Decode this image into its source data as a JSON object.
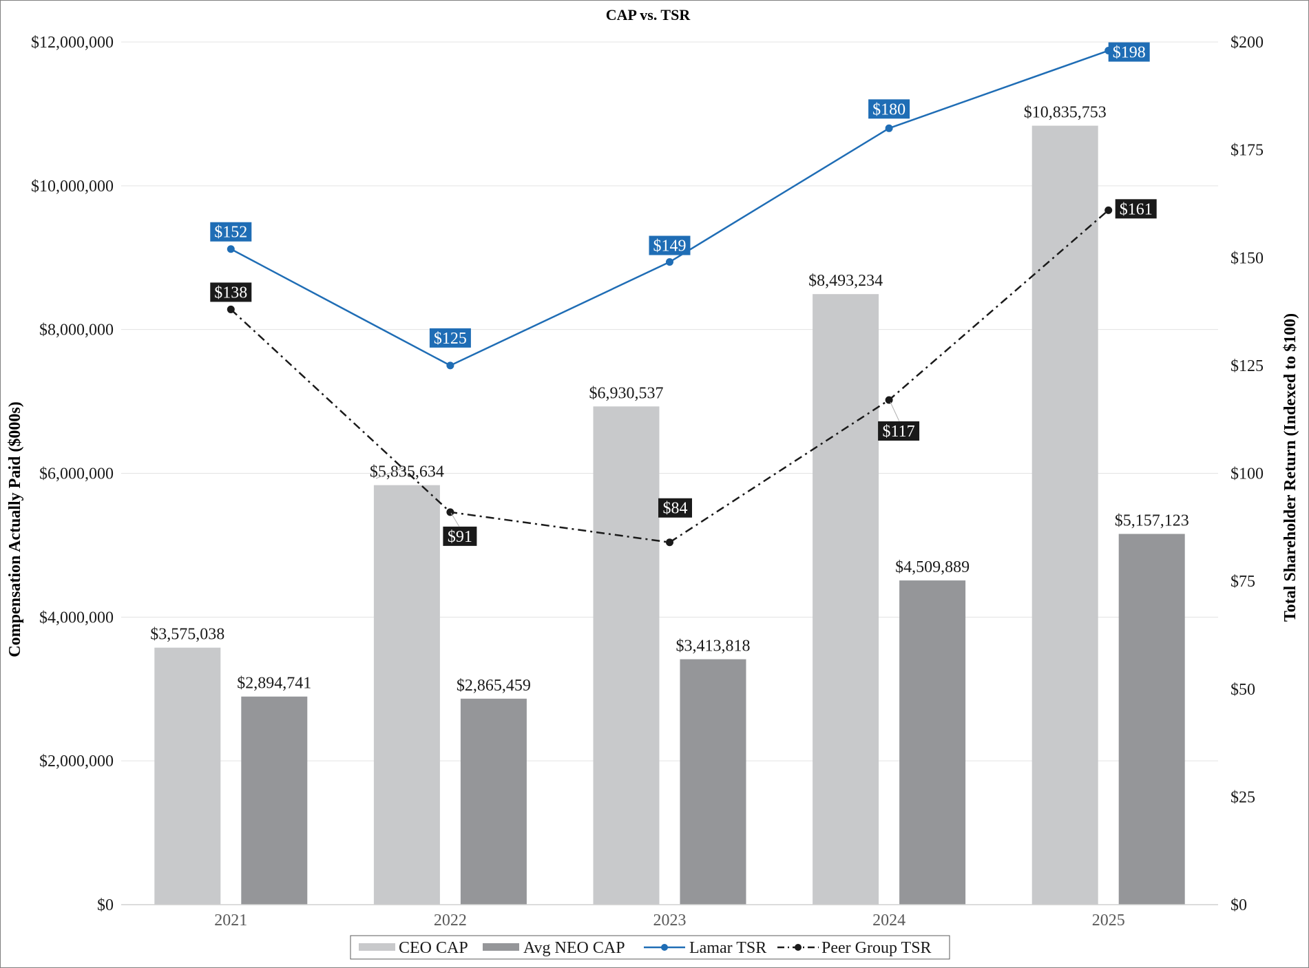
{
  "chart_data": {
    "type": "bar",
    "title": "CAP vs. TSR",
    "categories": [
      "2021",
      "2022",
      "2023",
      "2024",
      "2025"
    ],
    "ylabel": "Compensation Actually Paid ($000s)",
    "y2label": "Total Shareholder Return (Indexed to $100)",
    "ylim": [
      0,
      12000000
    ],
    "y2lim": [
      0,
      200
    ],
    "yticks": [
      0,
      2000000,
      4000000,
      6000000,
      8000000,
      10000000,
      12000000
    ],
    "yticklabels": [
      "$0",
      "$2,000,000",
      "$4,000,000",
      "$6,000,000",
      "$8,000,000",
      "$10,000,000",
      "$12,000,000"
    ],
    "y2ticks": [
      0,
      25,
      50,
      75,
      100,
      125,
      150,
      175,
      200
    ],
    "y2ticklabels": [
      "$0",
      "$25",
      "$50",
      "$75",
      "$100",
      "$125",
      "$150",
      "$175",
      "$200"
    ],
    "grid": true,
    "legend_position": "bottom",
    "bar_series": [
      {
        "name": "CEO CAP",
        "color": "#c8c9cb",
        "values": [
          3575038,
          5835634,
          6930537,
          8493234,
          10835753
        ],
        "labels": [
          "$3,575,038",
          "$5,835,634",
          "$6,930,537",
          "$8,493,234",
          "$10,835,753"
        ]
      },
      {
        "name": "Avg NEO CAP",
        "color": "#959699",
        "values": [
          2894741,
          2865459,
          3413818,
          4509889,
          5157123
        ],
        "labels": [
          "$2,894,741",
          "$2,865,459",
          "$3,413,818",
          "$4,509,889",
          "$5,157,123"
        ]
      }
    ],
    "line_series": [
      {
        "name": "Lamar TSR",
        "axis": "right",
        "color": "#1f6db5",
        "style": "solid",
        "values": [
          152,
          125,
          149,
          180,
          198
        ],
        "labels": [
          "$152",
          "$125",
          "$149",
          "$180",
          "$198"
        ]
      },
      {
        "name": "Peer Group TSR",
        "axis": "right",
        "color": "#1a1a1a",
        "style": "dash-dot",
        "values": [
          138,
          91,
          84,
          117,
          161
        ],
        "labels": [
          "$138",
          "$91",
          "$84",
          "$117",
          "$161"
        ]
      }
    ]
  }
}
